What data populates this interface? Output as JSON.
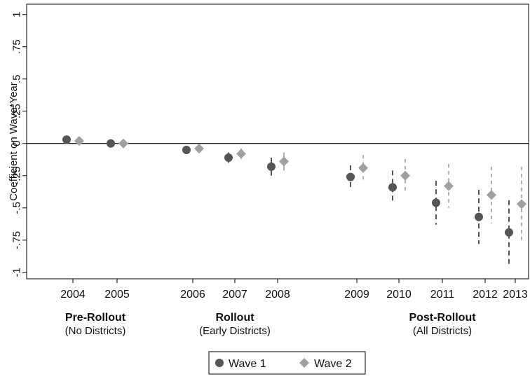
{
  "chart_data": {
    "type": "scatter",
    "ylabel": "Coefficient on Wave*Year",
    "ylim": [
      -1.05,
      1.08
    ],
    "y_ticks": [
      {
        "value": 1,
        "label": "1"
      },
      {
        "value": 0.75,
        "label": ".75"
      },
      {
        "value": 0.5,
        "label": ".5"
      },
      {
        "value": 0.25,
        "label": ".25"
      },
      {
        "value": 0,
        "label": "0"
      },
      {
        "value": -0.25,
        "label": "-.25"
      },
      {
        "value": -0.5,
        "label": "-.5"
      },
      {
        "value": -0.75,
        "label": "-.75"
      },
      {
        "value": -1,
        "label": "-1"
      }
    ],
    "reference_line": 0,
    "grid": false,
    "years": [
      "2004",
      "2005",
      "2006",
      "2007",
      "2008",
      "2009",
      "2010",
      "2011",
      "2012",
      "2013"
    ],
    "periods": [
      {
        "title": "Pre-Rollout",
        "subtitle": "(No Districts)"
      },
      {
        "title": "Rollout",
        "subtitle": "(Early Districts)"
      },
      {
        "title": "Post-Rollout",
        "subtitle": "(All Districts)"
      }
    ],
    "legend_placement": "bottom-center",
    "series": [
      {
        "name": "Wave 1",
        "marker": "circle",
        "color": "#555555",
        "ci_color": "#555555",
        "estimates": [
          0.03,
          0.0,
          -0.05,
          -0.11,
          -0.18,
          -0.26,
          -0.34,
          -0.46,
          -0.57,
          -0.69
        ],
        "ci_low": [
          0.0,
          -0.02,
          -0.07,
          -0.15,
          -0.25,
          -0.36,
          -0.47,
          -0.63,
          -0.78,
          -0.94
        ],
        "ci_high": [
          0.06,
          0.02,
          -0.03,
          -0.07,
          -0.11,
          -0.17,
          -0.21,
          -0.29,
          -0.36,
          -0.44
        ]
      },
      {
        "name": "Wave 2",
        "marker": "diamond",
        "color": "#a0a0a0",
        "ci_color": "#b0b0b0",
        "estimates": [
          0.02,
          0.0,
          -0.04,
          -0.08,
          -0.14,
          -0.19,
          -0.25,
          -0.33,
          -0.4,
          -0.47
        ],
        "ci_low": [
          -0.01,
          -0.02,
          -0.06,
          -0.12,
          -0.21,
          -0.29,
          -0.38,
          -0.5,
          -0.62,
          -0.75
        ],
        "ci_high": [
          0.05,
          0.02,
          -0.02,
          -0.04,
          -0.07,
          -0.09,
          -0.12,
          -0.16,
          -0.18,
          -0.18
        ]
      }
    ]
  }
}
